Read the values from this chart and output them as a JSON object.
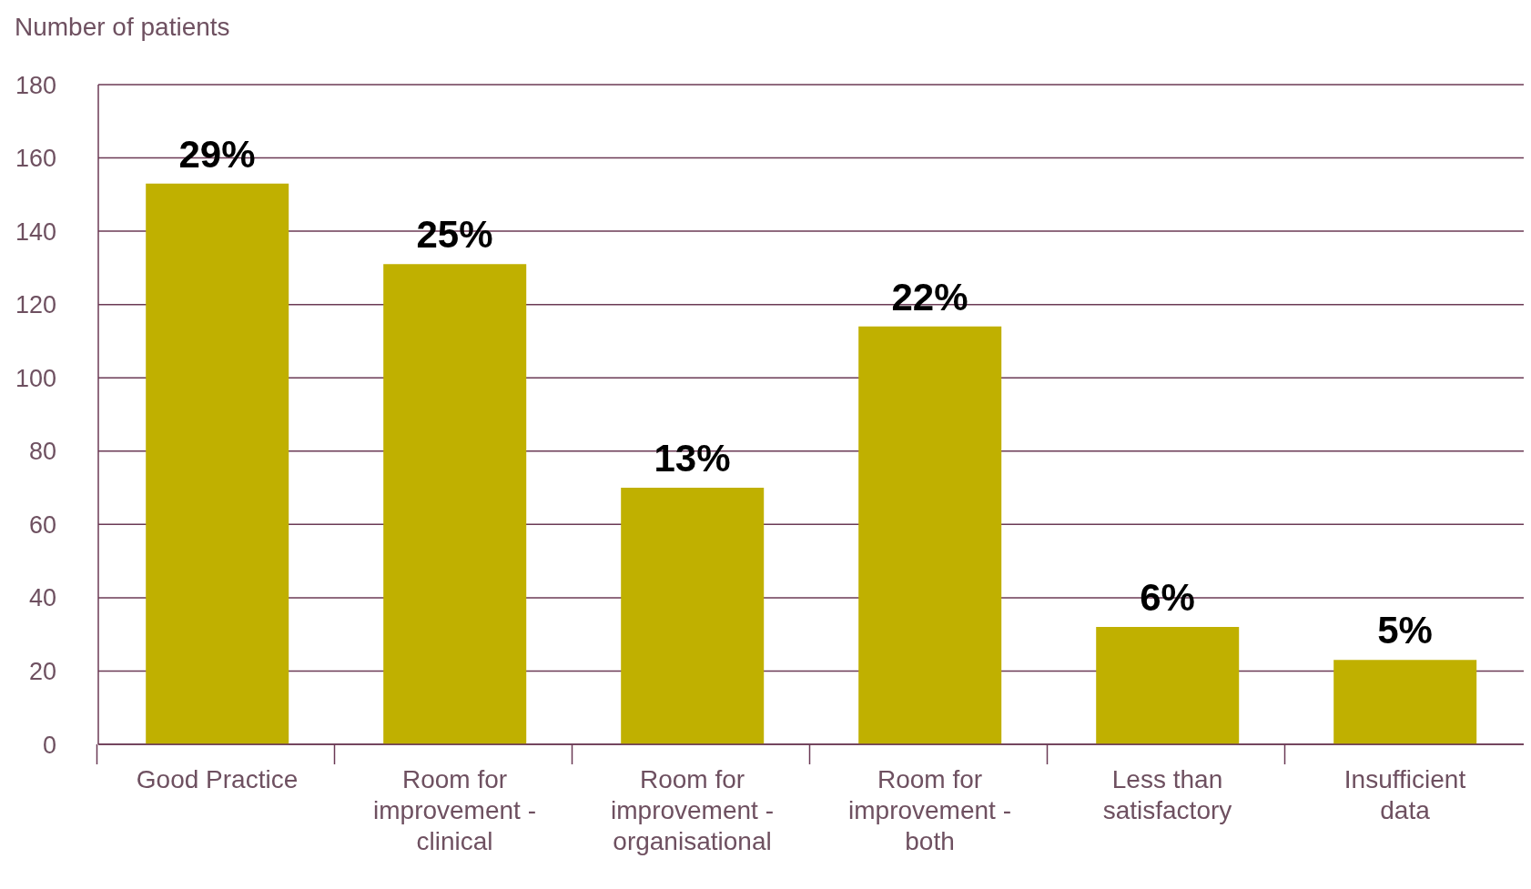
{
  "chart_data": {
    "type": "bar",
    "ylabel": "Number of patients",
    "categories": [
      "Good Practice",
      "Room for improvement - clinical",
      "Room for improvement - organisational",
      "Room for improvement - both",
      "Less than satisfactory",
      "Insufficient data"
    ],
    "values": [
      153,
      131,
      70,
      114,
      32,
      23
    ],
    "annotations": [
      {
        "text": "29%",
        "x": "Good Practice",
        "y": 153
      },
      {
        "text": "25%",
        "x": "Room for improvement - clinical",
        "y": 131
      },
      {
        "text": "13%",
        "x": "Room for improvement - organisational",
        "y": 70
      },
      {
        "text": "22%",
        "x": "Room for improvement - both",
        "y": 114
      },
      {
        "text": "6%",
        "x": "Less than satisfactory",
        "y": 32
      },
      {
        "text": "5%",
        "x": "Insufficient data",
        "y": 23
      }
    ],
    "color": "#c0b000",
    "ylim": [
      0,
      180
    ],
    "yticks": [
      0,
      20,
      40,
      60,
      80,
      100,
      120,
      140,
      160,
      180
    ],
    "grid": "y"
  }
}
